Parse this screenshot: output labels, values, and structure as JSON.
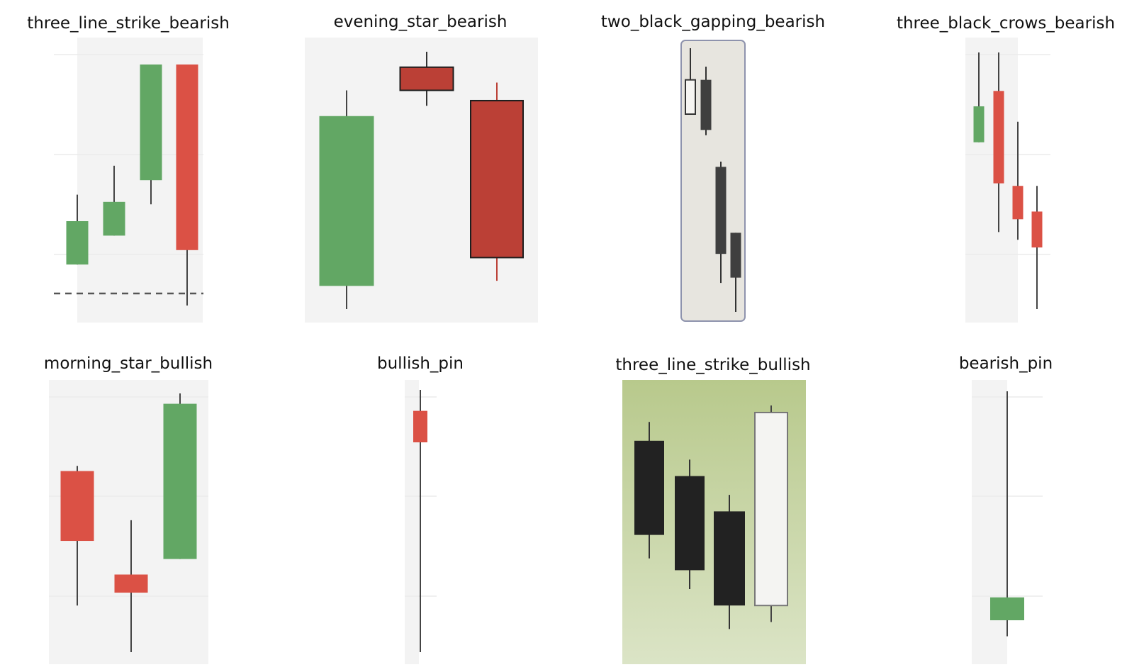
{
  "figure": {
    "colors": {
      "bull_green": "#62a764",
      "bear_red": "#db5145",
      "dark_red": "#bb4036",
      "black_body": "#222222",
      "dark_gray_body": "#3f3f3f",
      "wick": "#444444",
      "panel_bg_light": "#f3f3f3",
      "panel_bg_beige": "#e7e5df",
      "panel_bg_green_top": "#b8c98c",
      "panel_bg_green_bottom": "#dbe4c6"
    }
  },
  "chart_data": [
    {
      "type": "candlestick",
      "title": "three_line_strike_bearish",
      "background": "light-striped",
      "reference_line": {
        "style": "dashed",
        "value": 0.05
      },
      "candles": [
        {
          "open": 0.17,
          "close": 0.35,
          "high": 0.46,
          "low": 0.17,
          "color": "green"
        },
        {
          "open": 0.29,
          "close": 0.43,
          "high": 0.58,
          "low": 0.29,
          "color": "green"
        },
        {
          "open": 0.52,
          "close": 1.0,
          "high": 1.0,
          "low": 0.42,
          "color": "green"
        },
        {
          "open": 1.0,
          "close": 0.23,
          "high": 1.0,
          "low": 0.0,
          "color": "red"
        }
      ]
    },
    {
      "type": "candlestick",
      "title": "evening_star_bearish",
      "background": "light",
      "candles": [
        {
          "open": 0.09,
          "close": 0.75,
          "high": 0.85,
          "low": 0.0,
          "color": "green"
        },
        {
          "open": 0.94,
          "close": 0.85,
          "high": 1.0,
          "low": 0.79,
          "color": "dark-red"
        },
        {
          "open": 0.81,
          "close": 0.2,
          "high": 0.88,
          "low": 0.11,
          "color": "dark-red"
        }
      ]
    },
    {
      "type": "candlestick",
      "title": "two_black_gapping_bearish",
      "background": "beige-bordered",
      "candles": [
        {
          "open": 0.75,
          "close": 0.88,
          "high": 1.0,
          "low": 0.75,
          "color": "hollow"
        },
        {
          "open": 0.88,
          "close": 0.69,
          "high": 0.93,
          "low": 0.67,
          "color": "dark-gray"
        },
        {
          "open": 0.55,
          "close": 0.22,
          "high": 0.57,
          "low": 0.11,
          "color": "dark-gray"
        },
        {
          "open": 0.3,
          "close": 0.13,
          "high": 0.3,
          "low": 0.0,
          "color": "dark-gray"
        }
      ]
    },
    {
      "type": "candlestick",
      "title": "three_black_crows_bearish",
      "background": "light-striped",
      "candles": [
        {
          "open": 0.65,
          "close": 0.79,
          "high": 1.0,
          "low": 0.65,
          "color": "green"
        },
        {
          "open": 0.85,
          "close": 0.49,
          "high": 1.0,
          "low": 0.3,
          "color": "red"
        },
        {
          "open": 0.48,
          "close": 0.35,
          "high": 0.73,
          "low": 0.27,
          "color": "red"
        },
        {
          "open": 0.38,
          "close": 0.24,
          "high": 0.48,
          "low": 0.0,
          "color": "red"
        }
      ]
    },
    {
      "type": "candlestick",
      "title": "morning_star_bullish",
      "background": "light-striped",
      "candles": [
        {
          "open": 0.7,
          "close": 0.43,
          "high": 0.72,
          "low": 0.18,
          "color": "red"
        },
        {
          "open": 0.3,
          "close": 0.23,
          "high": 0.51,
          "low": 0.0,
          "color": "red"
        },
        {
          "open": 0.36,
          "close": 0.96,
          "high": 1.0,
          "low": 0.36,
          "color": "green"
        }
      ]
    },
    {
      "type": "candlestick",
      "title": "bullish_pin",
      "background": "light-striped",
      "candles": [
        {
          "open": 0.92,
          "close": 0.8,
          "high": 1.0,
          "low": 0.0,
          "color": "red"
        }
      ]
    },
    {
      "type": "candlestick",
      "title": "three_line_strike_bullish",
      "background": "green-gradient",
      "candles": [
        {
          "open": 0.85,
          "close": 0.45,
          "high": 0.93,
          "low": 0.35,
          "color": "black"
        },
        {
          "open": 0.7,
          "close": 0.3,
          "high": 0.77,
          "low": 0.22,
          "color": "black"
        },
        {
          "open": 0.55,
          "close": 0.15,
          "high": 0.62,
          "low": 0.05,
          "color": "black"
        },
        {
          "open": 0.15,
          "close": 0.97,
          "high": 1.0,
          "low": 0.08,
          "color": "white"
        }
      ]
    },
    {
      "type": "candlestick",
      "title": "bearish_pin",
      "background": "light-striped",
      "candles": [
        {
          "open": 0.0,
          "close": 0.1,
          "high": 1.0,
          "low": -0.07,
          "color": "green"
        }
      ]
    }
  ]
}
